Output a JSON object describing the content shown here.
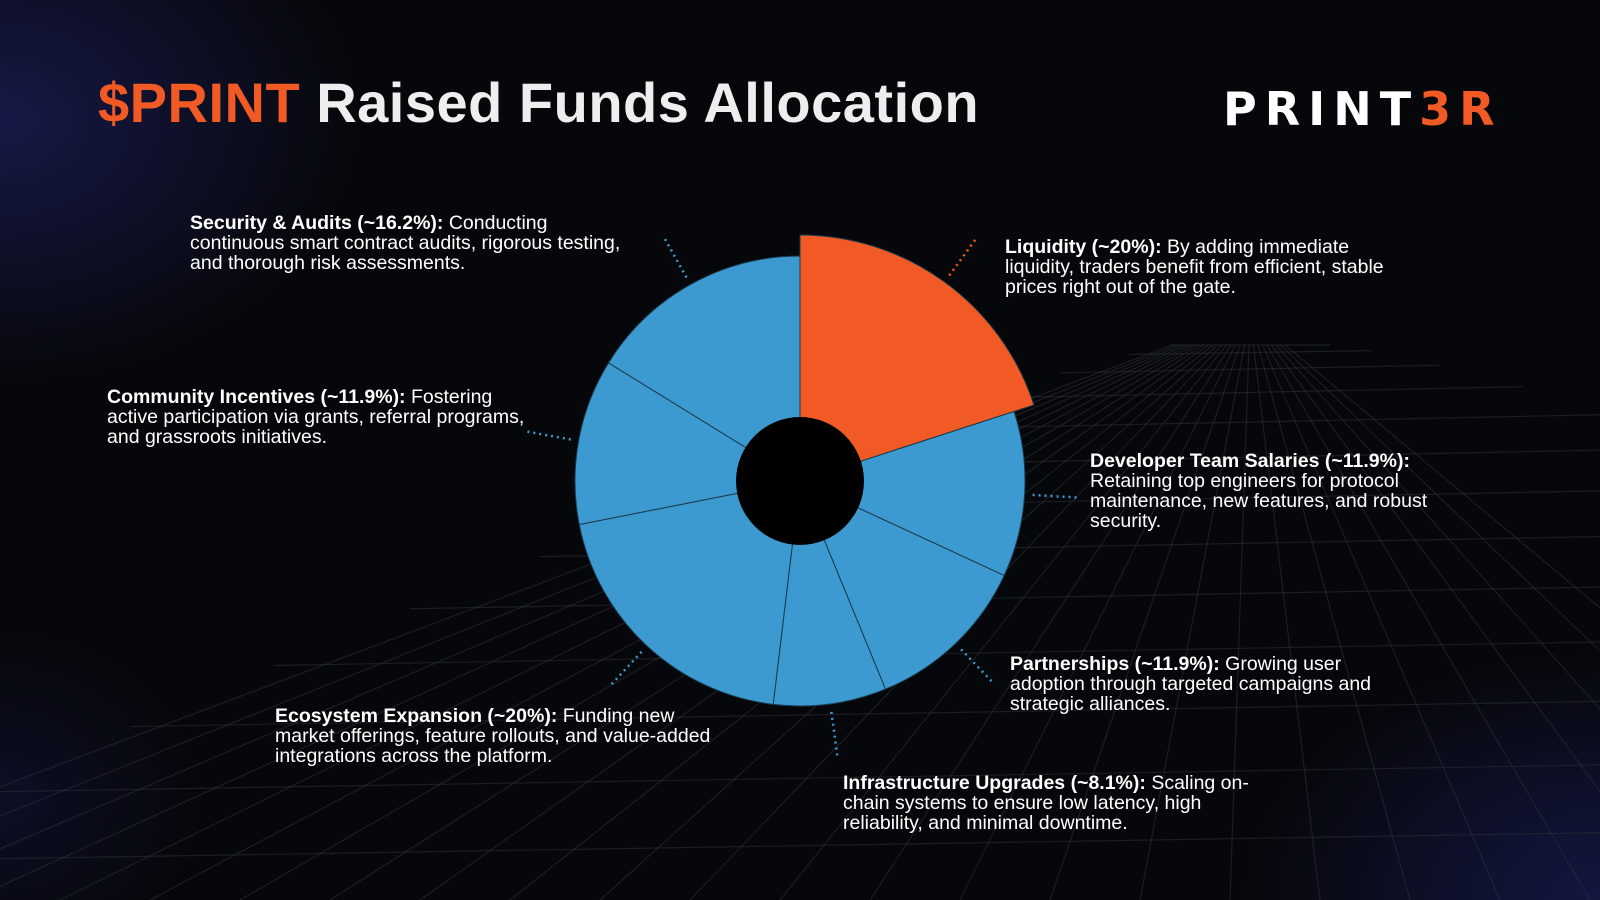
{
  "title": {
    "accent": "$PRINT",
    "rest": " Raised Funds Allocation"
  },
  "logo": {
    "main": "PRINT",
    "accent": "3R"
  },
  "colors": {
    "accent": "#f15a24",
    "segment_blue": "#3c9ad0",
    "background": "#06070a",
    "donut_hole": "#000000"
  },
  "chart_data": {
    "type": "pie",
    "donut": true,
    "title": "$PRINT Raised Funds Allocation",
    "slices": [
      {
        "name": "Liquidity",
        "value": 20,
        "value_label": "(~20%):",
        "description": "By adding immediate liquidity, traders benefit from efficient, stable prices right out of the gate.",
        "color": "#f15a24"
      },
      {
        "name": "Developer Team Salaries",
        "value": 11.9,
        "value_label": "(~11.9%):",
        "description": "Retaining top engineers for protocol maintenance, new features, and robust security.",
        "color": "#3c9ad0"
      },
      {
        "name": "Partnerships",
        "value": 11.9,
        "value_label": "(~11.9%):",
        "description": "Growing user adoption through targeted campaigns and strategic alliances.",
        "color": "#3c9ad0"
      },
      {
        "name": "Infrastructure Upgrades",
        "value": 8.1,
        "value_label": "(~8.1%):",
        "description": "Scaling on-chain systems to ensure low latency, high reliability, and minimal downtime.",
        "color": "#3c9ad0"
      },
      {
        "name": "Ecosystem Expansion",
        "value": 20,
        "value_label": "(~20%):",
        "description": "Funding new market offerings, feature rollouts, and value-added integrations across the platform.",
        "color": "#3c9ad0"
      },
      {
        "name": "Community Incentives",
        "value": 11.9,
        "value_label": "(~11.9%):",
        "description": "Fostering active participation via grants, referral programs, and grassroots initiatives.",
        "color": "#3c9ad0"
      },
      {
        "name": "Security & Audits",
        "value": 16.2,
        "value_label": "(~16.2%):",
        "description": "Conducting continuous smart contract audits, rigorous testing, and thorough risk assessments.",
        "color": "#3c9ad0"
      }
    ]
  }
}
